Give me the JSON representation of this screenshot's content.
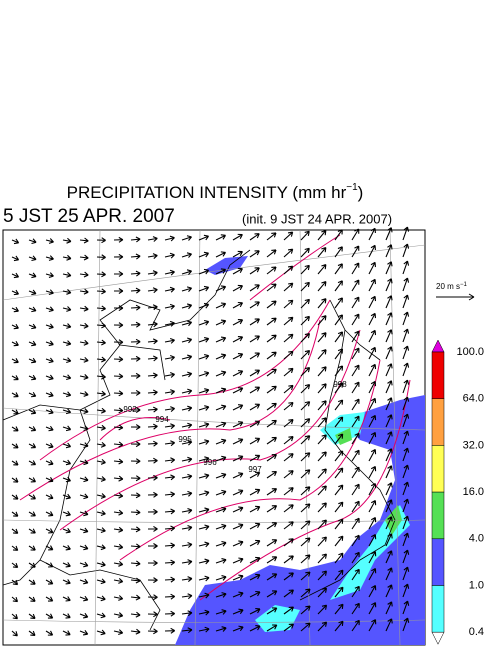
{
  "title": {
    "text": "PRECIPITATION INTENSITY (mm hr",
    "exponent": "−1",
    "close": ")"
  },
  "valid_time": "5 JST 25 APR. 2007",
  "init_time": "(init. 9 JST 24 APR. 2007)",
  "wind_scale": {
    "text": "20 m s",
    "exponent": "−1"
  },
  "colorbar": {
    "levels": [
      {
        "value": 100,
        "label": "100.0"
      },
      {
        "value": 64,
        "label": "64.0"
      },
      {
        "value": 32,
        "label": "32.0"
      },
      {
        "value": 16,
        "label": "16.0"
      },
      {
        "value": 4,
        "label": "4.0"
      },
      {
        "value": 1,
        "label": "1.0"
      },
      {
        "value": 0.4,
        "label": "0.4"
      }
    ],
    "colors": [
      "#dd00dd",
      "#ee0000",
      "#ffa040",
      "#ffff55",
      "#55e055",
      "#5555ff",
      "#55ffff",
      "#ffffff"
    ]
  },
  "contour_labels": [
    "992",
    "994",
    "995",
    "996",
    "997",
    "998"
  ]
}
